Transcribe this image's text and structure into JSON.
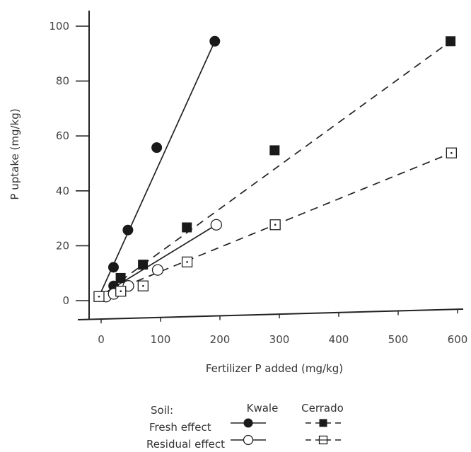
{
  "chart_data": {
    "type": "scatter",
    "xlabel": "Fertilizer P added (mg/kg)",
    "ylabel": "P uptake (mg/kg)",
    "xlim": [
      0,
      600
    ],
    "ylim": [
      0,
      100
    ],
    "xticks": [
      0,
      100,
      200,
      300,
      400,
      500,
      600
    ],
    "yticks": [
      0,
      20,
      40,
      60,
      80,
      100
    ],
    "grid": false,
    "legend_placement": "bottom",
    "series": [
      {
        "key": "kwale_fresh",
        "marker": "filled-circle",
        "line": "solid",
        "points": [
          [
            0,
            1
          ],
          [
            25,
            5
          ],
          [
            25,
            12
          ],
          [
            50,
            26
          ],
          [
            100,
            57
          ],
          [
            200,
            97
          ]
        ]
      },
      {
        "key": "cerrado_fresh",
        "marker": "filled-square",
        "line": "dashed",
        "points": [
          [
            0,
            1
          ],
          [
            37,
            8
          ],
          [
            75,
            13
          ],
          [
            150,
            27
          ],
          [
            300,
            56
          ],
          [
            600,
            97
          ]
        ]
      },
      {
        "key": "kwale_residual",
        "marker": "open-circle",
        "line": "solid",
        "points": [
          [
            12,
            1
          ],
          [
            25,
            2
          ],
          [
            50,
            5
          ],
          [
            100,
            11
          ],
          [
            200,
            28
          ]
        ]
      },
      {
        "key": "cerrado_residual",
        "marker": "open-square",
        "line": "dashed",
        "points": [
          [
            0,
            1
          ],
          [
            37,
            3
          ],
          [
            75,
            5
          ],
          [
            150,
            14
          ],
          [
            300,
            28
          ],
          [
            600,
            55
          ]
        ]
      }
    ],
    "fit_lines": [
      {
        "series": "kwale_fresh",
        "from": [
          0,
          1
        ],
        "to": [
          200,
          97
        ]
      },
      {
        "series": "cerrado_fresh",
        "from": [
          0,
          1
        ],
        "to": [
          600,
          97
        ]
      },
      {
        "series": "kwale_residual",
        "from": [
          0,
          1
        ],
        "to": [
          200,
          28
        ]
      },
      {
        "series": "cerrado_residual",
        "from": [
          0,
          1
        ],
        "to": [
          600,
          55
        ]
      }
    ]
  },
  "legend": {
    "soil_label": "Soil:",
    "kwale_label": "Kwale",
    "cerrado_label": "Cerrado",
    "fresh_label": "Fresh effect",
    "residual_label": "Residual effect"
  }
}
